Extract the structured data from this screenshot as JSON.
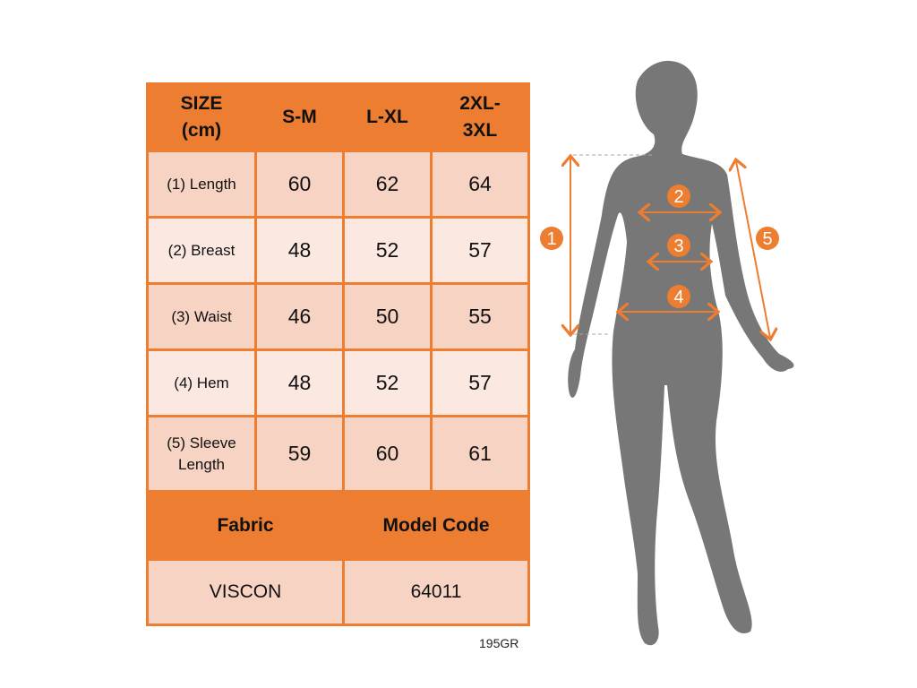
{
  "table": {
    "headers": [
      "SIZE\n(cm)",
      "S-M",
      "L-XL",
      "2XL-\n3XL"
    ],
    "rows": [
      {
        "label": "(1) Length",
        "values": [
          "60",
          "62",
          "64"
        ]
      },
      {
        "label": "(2) Breast",
        "values": [
          "48",
          "52",
          "57"
        ]
      },
      {
        "label": "(3) Waist",
        "values": [
          "46",
          "50",
          "55"
        ]
      },
      {
        "label": "(4) Hem",
        "values": [
          "48",
          "52",
          "57"
        ]
      },
      {
        "label": "(5) Sleeve\nLength",
        "values": [
          "59",
          "60",
          "61"
        ]
      }
    ],
    "fabric_label": "Fabric",
    "model_code_label": "Model Code",
    "fabric_value": "VISCON",
    "model_code_value": "64011"
  },
  "product_code": "195GR",
  "figure": {
    "markers": [
      "1",
      "2",
      "3",
      "4",
      "5"
    ]
  },
  "colors": {
    "accent": "#ED7D31",
    "silhouette": "#777777",
    "row_dark": "#F7D3C3",
    "row_light": "#FBE8E0"
  }
}
